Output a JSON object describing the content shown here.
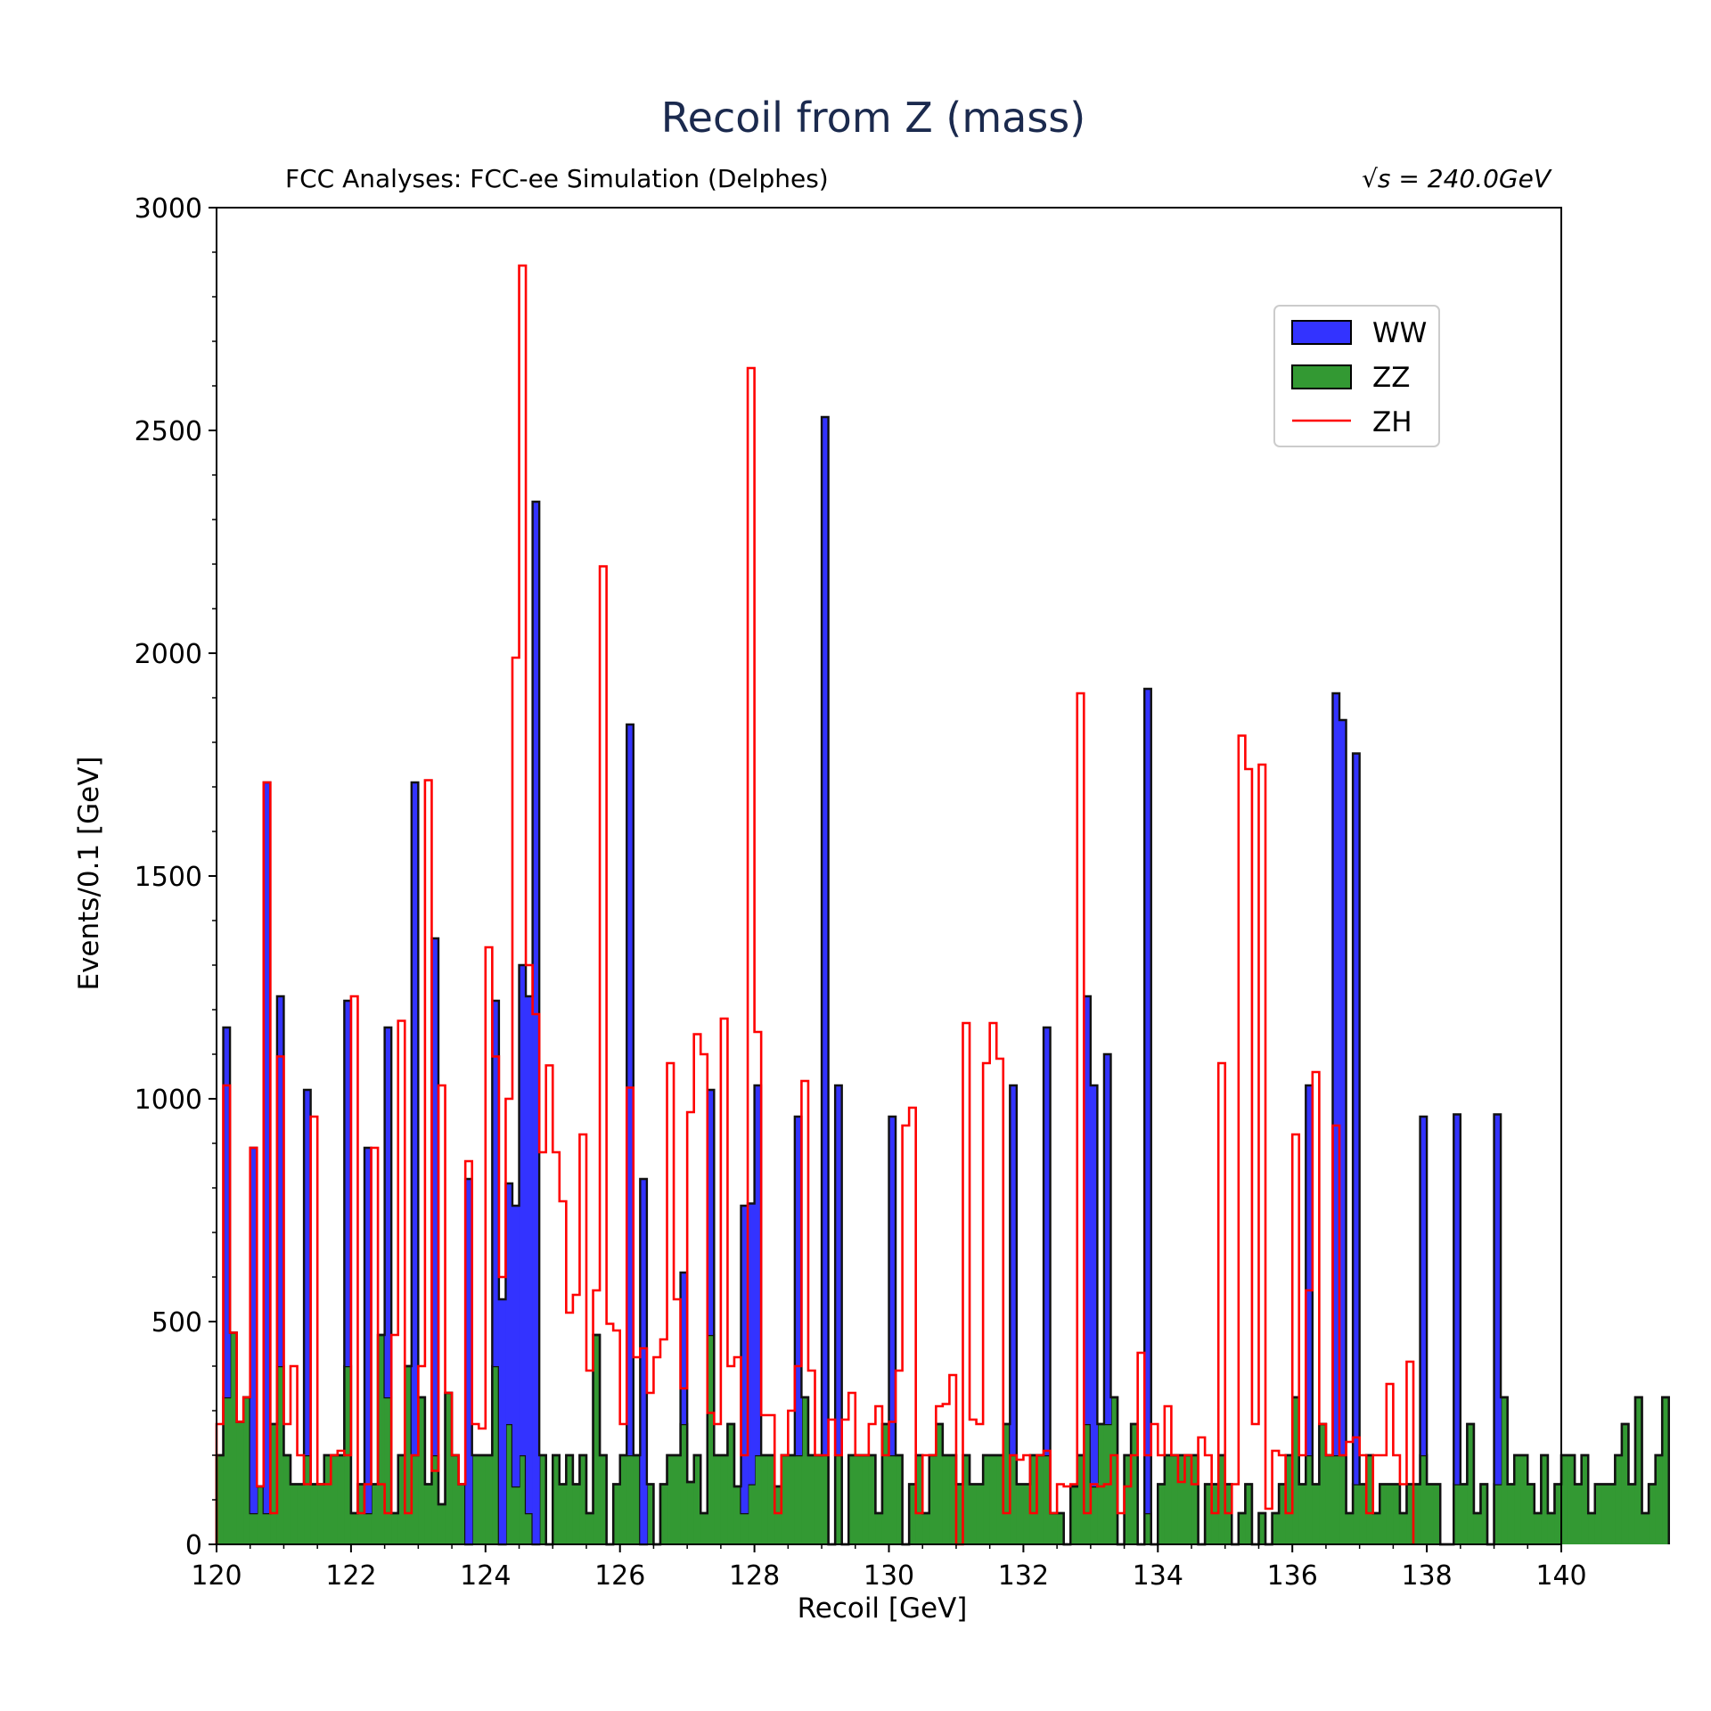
{
  "chart_data": {
    "type": "bar",
    "histtype": "stacked-step",
    "title": "Recoil from Z (mass)",
    "subtitle_left": "FCC Analyses: FCC-ee Simulation (Delphes)",
    "subtitle_right": "√s = 240.0GeV",
    "xlabel": "Recoil [GeV]",
    "ylabel": "Events/0.1 [GeV]",
    "xlim": [
      120,
      140
    ],
    "ylim": [
      0,
      3000
    ],
    "bin_width": 0.1,
    "xticks": [
      120,
      122,
      124,
      126,
      128,
      130,
      132,
      134,
      136,
      138,
      140
    ],
    "yticks": [
      0,
      500,
      1000,
      1500,
      2000,
      2500,
      3000
    ],
    "legend_position": "upper right",
    "series": [
      {
        "name": "ZZ",
        "role": "stack-bottom",
        "color": "#339933",
        "values": [
          200,
          330,
          475,
          275,
          330,
          70,
          130,
          70,
          270,
          400,
          200,
          135,
          135,
          200,
          135,
          135,
          200,
          200,
          200,
          400,
          70,
          135,
          70,
          135,
          470,
          330,
          70,
          200,
          400,
          200,
          330,
          135,
          200,
          90,
          340,
          200,
          135,
          0,
          200,
          200,
          200,
          400,
          0,
          270,
          130,
          200,
          70,
          0,
          200,
          0,
          200,
          135,
          200,
          135,
          200,
          70,
          470,
          200,
          0,
          135,
          200,
          200,
          200,
          0,
          135,
          0,
          135,
          200,
          200,
          270,
          140,
          200,
          70,
          470,
          200,
          200,
          270,
          130,
          70,
          135,
          200,
          200,
          200,
          130,
          200,
          200,
          200,
          330,
          200,
          200,
          200,
          0,
          200,
          0,
          200,
          200,
          200,
          200,
          70,
          270,
          200,
          200,
          0,
          135,
          200,
          70,
          200,
          270,
          200,
          200,
          135,
          200,
          135,
          135,
          200,
          200,
          200,
          270,
          200,
          135,
          135,
          200,
          200,
          200,
          70,
          70,
          0,
          130,
          200,
          270,
          130,
          270,
          270,
          330,
          0,
          200,
          270,
          0,
          70,
          0,
          135,
          200,
          200,
          200,
          200,
          200,
          0,
          135,
          135,
          200,
          135,
          0,
          70,
          135,
          0,
          70,
          0,
          70,
          135,
          200,
          330,
          135,
          200,
          135,
          270,
          200,
          200,
          200,
          70,
          135,
          135,
          200,
          70,
          135,
          135,
          135,
          70,
          135,
          135,
          200,
          135,
          135,
          0,
          0,
          135,
          135,
          270,
          70,
          135,
          0,
          135,
          330,
          135,
          200,
          200,
          135,
          70,
          200,
          70,
          135,
          200,
          200,
          135,
          200,
          70,
          135,
          135,
          135,
          200,
          270,
          135,
          330,
          70,
          135,
          200,
          330
        ]
      },
      {
        "name": "WW",
        "role": "stack-top",
        "color": "#3333ff",
        "values": [
          0,
          830,
          0,
          0,
          0,
          820,
          0,
          1640,
          0,
          830,
          0,
          0,
          0,
          820,
          0,
          0,
          0,
          0,
          0,
          820,
          0,
          0,
          820,
          0,
          0,
          830,
          0,
          0,
          0,
          1510,
          0,
          0,
          1160,
          0,
          0,
          0,
          0,
          820,
          0,
          0,
          0,
          820,
          550,
          540,
          630,
          1100,
          1160,
          2340,
          0,
          0,
          0,
          0,
          0,
          0,
          0,
          0,
          0,
          0,
          0,
          0,
          0,
          1640,
          0,
          820,
          0,
          0,
          0,
          0,
          0,
          340,
          0,
          0,
          0,
          550,
          0,
          0,
          0,
          0,
          690,
          630,
          830,
          0,
          0,
          0,
          0,
          0,
          760,
          0,
          0,
          0,
          2330,
          0,
          830,
          0,
          0,
          0,
          0,
          0,
          0,
          0,
          760,
          0,
          0,
          0,
          0,
          0,
          0,
          0,
          0,
          0,
          0,
          0,
          0,
          0,
          0,
          0,
          0,
          0,
          830,
          0,
          0,
          0,
          0,
          960,
          0,
          0,
          0,
          0,
          0,
          960,
          900,
          0,
          830,
          0,
          0,
          0,
          0,
          0,
          1850,
          0,
          0,
          0,
          0,
          0,
          0,
          0,
          0,
          0,
          0,
          0,
          0,
          0,
          0,
          0,
          0,
          0,
          0,
          0,
          0,
          0,
          0,
          0,
          830,
          0,
          0,
          0,
          1710,
          1650,
          0,
          1640,
          0,
          0,
          0,
          0,
          0,
          0,
          0,
          0,
          0,
          760,
          0,
          0,
          0,
          0,
          830,
          0,
          0,
          0,
          0,
          0,
          830,
          0,
          0,
          0,
          0,
          0,
          0,
          0,
          0,
          0,
          0,
          0,
          0,
          0
        ]
      },
      {
        "name": "ZH",
        "role": "total-outline",
        "color": "#ff0000",
        "values": [
          270,
          1030,
          475,
          275,
          330,
          890,
          130,
          1710,
          70,
          1095,
          270,
          400,
          200,
          135,
          960,
          135,
          135,
          200,
          210,
          200,
          1230,
          70,
          135,
          890,
          135,
          70,
          470,
          1175,
          70,
          200,
          400,
          1715,
          165,
          1030,
          340,
          200,
          135,
          860,
          270,
          260,
          1340,
          1095,
          600,
          1000,
          1990,
          2870,
          1300,
          1190,
          880,
          1075,
          880,
          770,
          520,
          560,
          920,
          390,
          570,
          2195,
          495,
          480,
          270,
          1025,
          420,
          440,
          340,
          420,
          460,
          1080,
          550,
          350,
          970,
          1145,
          1100,
          295,
          270,
          1180,
          400,
          420,
          200,
          2640,
          1150,
          290,
          290,
          70,
          200,
          300,
          400,
          1040,
          390,
          200,
          200,
          280,
          200,
          280,
          340,
          200,
          200,
          270,
          310,
          200,
          275,
          390,
          940,
          980,
          70,
          200,
          200,
          310,
          315,
          380,
          0,
          1170,
          280,
          270,
          1080,
          1170,
          1090,
          70,
          200,
          190,
          200,
          70,
          200,
          210,
          70,
          135,
          130,
          135,
          1910,
          70,
          135,
          130,
          135,
          200,
          70,
          130,
          200,
          430,
          200,
          270,
          200,
          310,
          200,
          140,
          200,
          135,
          240,
          200,
          70,
          1080,
          70,
          135,
          1815,
          1740,
          270,
          1750,
          80,
          210,
          200,
          70,
          920,
          200,
          570,
          1060,
          270,
          200,
          940,
          200,
          230,
          240,
          200,
          70,
          200,
          200,
          360,
          200,
          135,
          410
        ]
      }
    ]
  }
}
